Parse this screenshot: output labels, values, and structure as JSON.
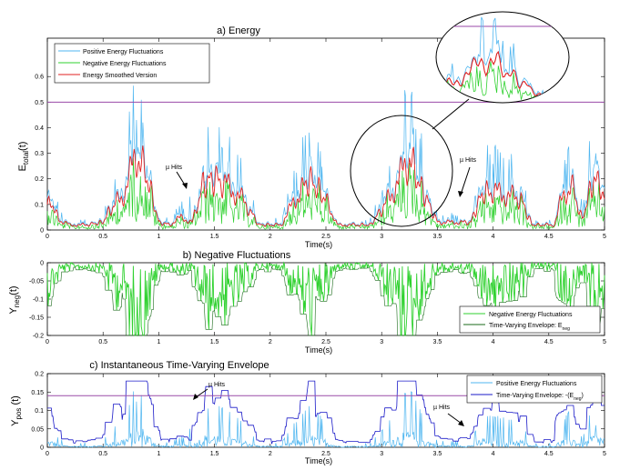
{
  "chart_data": [
    {
      "type": "line",
      "title": "a)    Energy",
      "xlabel": "Time(s)",
      "ylabel": "E_total(t)",
      "xlim": [
        0,
        5
      ],
      "ylim": [
        0,
        0.75
      ],
      "xticks": [
        0,
        0.5,
        1,
        1.5,
        2,
        2.5,
        3,
        3.5,
        4,
        4.5,
        5
      ],
      "xtick_labels": [
        "0",
        "0.5",
        "1",
        "1.5",
        "2",
        "2.5",
        "3",
        "3.5",
        "4",
        "4.5",
        "5"
      ],
      "yticks": [
        0,
        0.1,
        0.2,
        0.3,
        0.4,
        0.5,
        0.6
      ],
      "ytick_labels": [
        "0",
        "0.1",
        "0.2",
        "0.3",
        "0.4",
        "0.5",
        "0.6"
      ],
      "threshold": 0.5,
      "legend": [
        "Positive Energy Fluctuations",
        "Negative Energy Fluctuations",
        "Energy Smoothed Version"
      ],
      "legend_placement": "top-left",
      "series_colors": [
        "#4fb6f0",
        "#2fd12f",
        "#e02020"
      ],
      "threshold_color": "#9a4aa8",
      "annotations": [
        "µ Hits",
        "µ Hits"
      ],
      "inset_note": "magnified view of the circled region (t ≈ 3.0–3.6 s)",
      "approx_smoothed_keypoints": {
        "x": [
          0,
          0.05,
          0.1,
          0.2,
          0.35,
          0.5,
          0.55,
          0.7,
          0.8,
          0.9,
          1.0,
          1.1,
          1.2,
          1.3,
          1.4,
          1.5,
          1.6,
          1.75,
          1.9,
          2.1,
          2.2,
          2.35,
          2.5,
          2.6,
          2.75,
          2.9,
          3.0,
          3.1,
          3.25,
          3.35,
          3.5,
          3.6,
          3.7,
          3.8,
          3.9,
          4.0,
          4.1,
          4.25,
          4.35,
          4.45,
          4.55,
          4.6,
          4.7,
          4.8,
          4.9,
          5.0
        ],
        "y": [
          0.1,
          0.1,
          0.04,
          0.02,
          0.02,
          0.03,
          0.07,
          0.15,
          0.3,
          0.2,
          0.03,
          0.02,
          0.05,
          0.03,
          0.18,
          0.2,
          0.18,
          0.12,
          0.02,
          0.02,
          0.1,
          0.2,
          0.12,
          0.02,
          0.02,
          0.02,
          0.08,
          0.15,
          0.28,
          0.17,
          0.03,
          0.03,
          0.03,
          0.03,
          0.14,
          0.15,
          0.14,
          0.12,
          0.02,
          0.02,
          0.02,
          0.1,
          0.18,
          0.04,
          0.2,
          0.15
        ]
      }
    },
    {
      "type": "line",
      "title": "b)    Negative Fluctuations",
      "xlabel": "Time(s)",
      "ylabel": "Y_neg(t)",
      "xlim": [
        0,
        5
      ],
      "ylim": [
        -0.2,
        0
      ],
      "xticks": [
        0,
        0.5,
        1,
        1.5,
        2,
        2.5,
        3,
        3.5,
        4,
        4.5,
        5
      ],
      "xtick_labels": [
        "0",
        "0.5",
        "1",
        "1.5",
        "2",
        "2.5",
        "3",
        "3.5",
        "4",
        "4.5",
        "5"
      ],
      "yticks": [
        -0.2,
        -0.15,
        -0.1,
        -0.05,
        0
      ],
      "ytick_labels": [
        "-0.2",
        "-0.15",
        "-0.1",
        "-0.05",
        "0"
      ],
      "legend": [
        "Negative Energy Fluctuations",
        "Time-Varying Envelope: E_neg"
      ],
      "legend_placement": "bottom-right",
      "series_colors": [
        "#2fd12f",
        "#1a6a1a"
      ]
    },
    {
      "type": "line",
      "title": "c)    Instantaneous Time-Varying Envelope",
      "xlabel": "Time(s)",
      "ylabel": "Y_pos (t)",
      "xlim": [
        0,
        5
      ],
      "ylim": [
        0,
        0.2
      ],
      "xticks": [
        0,
        0.5,
        1,
        1.5,
        2,
        2.5,
        3,
        3.5,
        4,
        4.5,
        5
      ],
      "xtick_labels": [
        "0",
        "0.5",
        "1",
        "1.5",
        "2",
        "2.5",
        "3",
        "3.5",
        "4",
        "4.5",
        "5"
      ],
      "yticks": [
        0,
        0.05,
        0.1,
        0.15,
        0.2
      ],
      "ytick_labels": [
        "0",
        "0.05",
        "0.1",
        "0.15",
        "0.2"
      ],
      "threshold": 0.14,
      "legend": [
        "Positive Energy Fluctuations",
        "Time-Varying Envelope: -(E_neg)"
      ],
      "legend_placement": "top-right",
      "series_colors": [
        "#4fb6f0",
        "#1a1ac8"
      ],
      "threshold_color": "#9a4aa8",
      "annotations": [
        "µ Hits",
        "µ Hits"
      ]
    }
  ],
  "text": {
    "titleA": "a)    Energy",
    "titleB": "b)    Negative Fluctuations",
    "titleC": "c)    Instantaneous Time-Varying Envelope",
    "xlabel": "Time(s)",
    "ylabA_main": "E",
    "ylabA_sub": "total",
    "ylabA_tail": "(t)",
    "ylabB_main": "Y",
    "ylabB_sub": "neg",
    "ylabB_tail": "(t)",
    "ylabC_main": "Y",
    "ylabC_sub": "pos",
    "ylabC_tail": " (t)",
    "legA1": "Positive Energy Fluctuations",
    "legA2": "Negative Energy Fluctuations",
    "legA3": "Energy Smoothed Version",
    "legB1": "Negative Energy Fluctuations",
    "legB2_main": "Time-Varying Envelope: E",
    "legB2_sub": "neg",
    "legC1": "Positive Energy Fluctuations",
    "legC2_main": "Time-Varying Envelope: -(E",
    "legC2_sub": "neg",
    "legC2_tail": ")",
    "hit": "µ Hits"
  }
}
